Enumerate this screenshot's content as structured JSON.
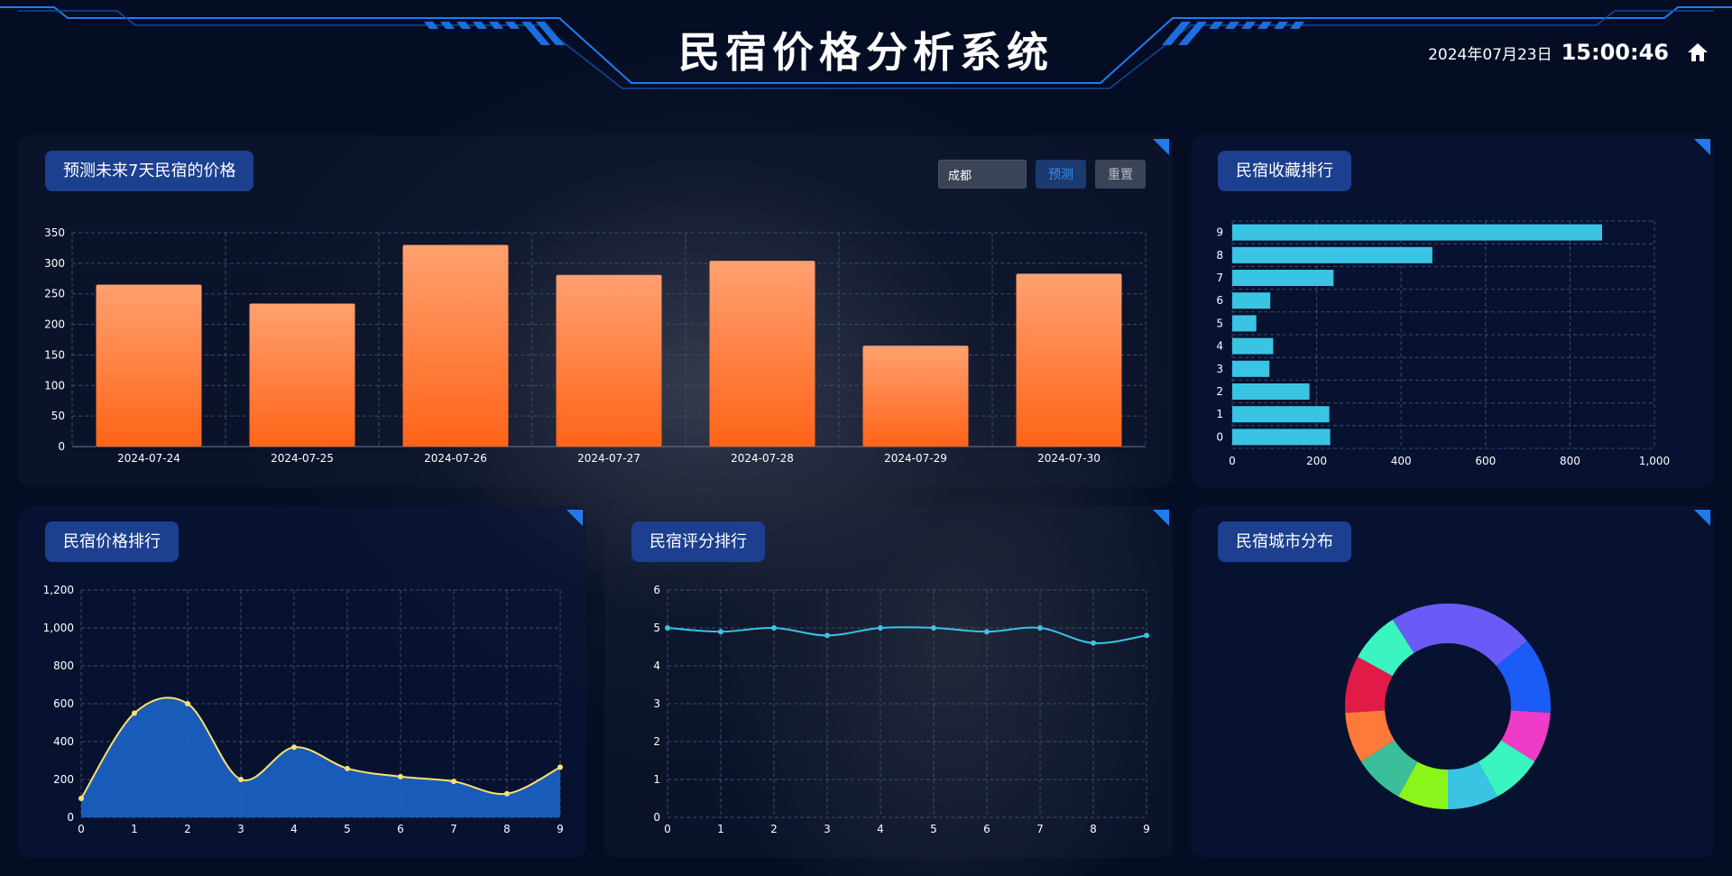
{
  "header": {
    "title": "民宿价格分析系统",
    "date": "2024年07月23日",
    "time": "15:00:46",
    "home_icon": "home-icon"
  },
  "forecast_panel": {
    "title": "预测未来7天民宿的价格",
    "city_value": "成都",
    "predict_label": "预测",
    "reset_label": "重置"
  },
  "favorites_panel": {
    "title": "民宿收藏排行"
  },
  "price_panel": {
    "title": "民宿价格排行"
  },
  "rating_panel": {
    "title": "民宿评分排行"
  },
  "city_panel": {
    "title": "民宿城市分布"
  },
  "colors": {
    "accent": "#1e7cf0",
    "bar_top": "#ffa070",
    "bar_bottom": "#ff6418",
    "hbar": "#3ac4e4",
    "area_fill": "#1c64c8",
    "area_line": "#ffe070",
    "rating_line": "#3ac4e4"
  },
  "chart_data": [
    {
      "id": "forecast",
      "type": "bar",
      "title": "",
      "categories": [
        "2024-07-24",
        "2024-07-25",
        "2024-07-26",
        "2024-07-27",
        "2024-07-28",
        "2024-07-29",
        "2024-07-30"
      ],
      "values": [
        265,
        234,
        330,
        281,
        304,
        165,
        283
      ],
      "yticks": [
        "0",
        "50",
        "100",
        "150",
        "200",
        "250",
        "300",
        "350"
      ],
      "ylim": [
        0,
        350
      ],
      "grid": true
    },
    {
      "id": "favorites",
      "type": "bar",
      "orientation": "horizontal",
      "title": "",
      "categories": [
        "0",
        "1",
        "2",
        "3",
        "4",
        "5",
        "6",
        "7",
        "8",
        "9"
      ],
      "values": [
        232,
        230,
        183,
        88,
        97,
        57,
        90,
        240,
        474,
        876
      ],
      "xticks": [
        "0",
        "200",
        "400",
        "600",
        "800",
        "1,000"
      ],
      "xlim": [
        0,
        1000
      ],
      "grid": true
    },
    {
      "id": "price",
      "type": "area",
      "title": "",
      "x": [
        "0",
        "1",
        "2",
        "3",
        "4",
        "5",
        "6",
        "7",
        "8",
        "9"
      ],
      "values": [
        100,
        550,
        600,
        200,
        370,
        258,
        215,
        190,
        125,
        265
      ],
      "yticks": [
        "0",
        "200",
        "400",
        "600",
        "800",
        "1,000",
        "1,200"
      ],
      "ylim": [
        0,
        1200
      ],
      "grid": true
    },
    {
      "id": "rating",
      "type": "line",
      "title": "",
      "x": [
        "0",
        "1",
        "2",
        "3",
        "4",
        "5",
        "6",
        "7",
        "8",
        "9"
      ],
      "values": [
        5.0,
        4.9,
        5.0,
        4.8,
        5.0,
        5.0,
        4.9,
        5.0,
        4.6,
        4.8
      ],
      "yticks": [
        "0",
        "1",
        "2",
        "3",
        "4",
        "5",
        "6"
      ],
      "ylim": [
        0,
        6
      ],
      "grid": true
    },
    {
      "id": "city",
      "type": "pie",
      "donut": true,
      "title": "",
      "values": [
        14,
        12,
        8,
        8,
        8,
        8,
        8,
        8,
        9,
        8,
        9
      ],
      "colors": [
        "#6a5af7",
        "#1a5cf6",
        "#f03ac8",
        "#3af5c0",
        "#3ac4e4",
        "#8af51a",
        "#3abf9a",
        "#ff7a3a",
        "#e21a48",
        "#3af5c0",
        "#6a5af7"
      ]
    }
  ]
}
